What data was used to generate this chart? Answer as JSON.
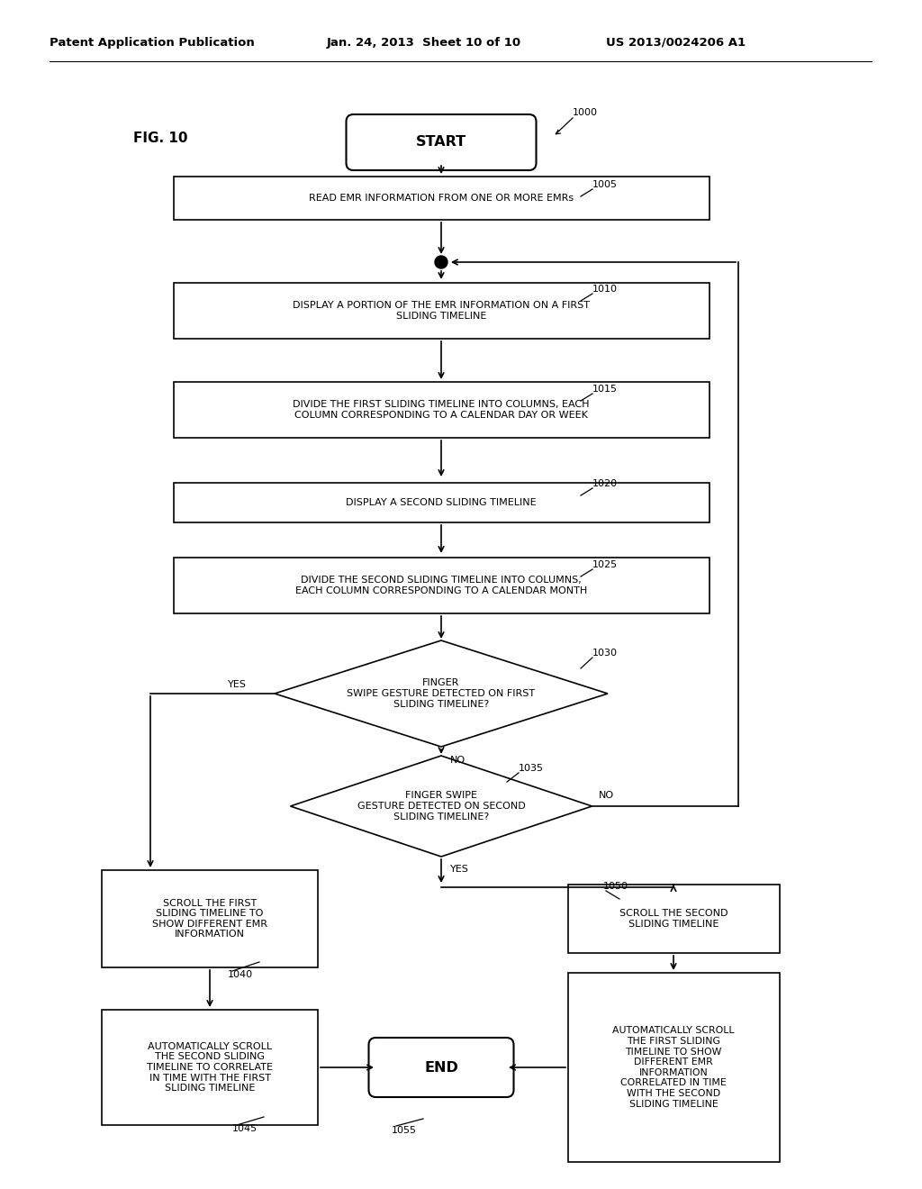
{
  "bg_color": "#ffffff",
  "header_left": "Patent Application Publication",
  "header_mid": "Jan. 24, 2013  Sheet 10 of 10",
  "header_right": "US 2013/0024206 A1",
  "fig_label": "FIG. 10",
  "start_label": "START",
  "end_label": "END",
  "lbl_1000": "1000",
  "lbl_1005": "1005",
  "lbl_1010": "1010",
  "lbl_1015": "1015",
  "lbl_1020": "1020",
  "lbl_1025": "1025",
  "lbl_1030": "1030",
  "lbl_1035": "1035",
  "lbl_1040": "1040",
  "lbl_1045": "1045",
  "lbl_1050": "1050",
  "lbl_1055": "1055",
  "txt_1005": "READ EMR INFORMATION FROM ONE OR MORE EMRs",
  "txt_1010": "DISPLAY A PORTION OF THE EMR INFORMATION ON A FIRST\nSLIDING TIMELINE",
  "txt_1015": "DIVIDE THE FIRST SLIDING TIMELINE INTO COLUMNS, EACH\nCOLUMN CORRESPONDING TO A CALENDAR DAY OR WEEK",
  "txt_1020": "DISPLAY A SECOND SLIDING TIMELINE",
  "txt_1025": "DIVIDE THE SECOND SLIDING TIMELINE INTO COLUMNS,\nEACH COLUMN CORRESPONDING TO A CALENDAR MONTH",
  "txt_1030": "FINGER\nSWIPE GESTURE DETECTED ON FIRST\nSLIDING TIMELINE?",
  "txt_1035": "FINGER SWIPE\nGESTURE DETECTED ON SECOND\nSLIDING TIMELINE?",
  "txt_1040": "SCROLL THE FIRST\nSLIDING TIMELINE TO\nSHOW DIFFERENT EMR\nINFORMATION",
  "txt_1045": "AUTOMATICALLY SCROLL\nTHE SECOND SLIDING\nTIMELINE TO CORRELATE\nIN TIME WITH THE FIRST\nSLIDING TIMELINE",
  "txt_1050": "SCROLL THE SECOND\nSLIDING TIMELINE",
  "txt_1055": "AUTOMATICALLY SCROLL\nTHE FIRST SLIDING\nTIMELINE TO SHOW\nDIFFERENT EMR\nINFORMATION\nCORRELATED IN TIME\nWITH THE SECOND\nSLIDING TIMELINE",
  "yes": "YES",
  "no": "NO"
}
